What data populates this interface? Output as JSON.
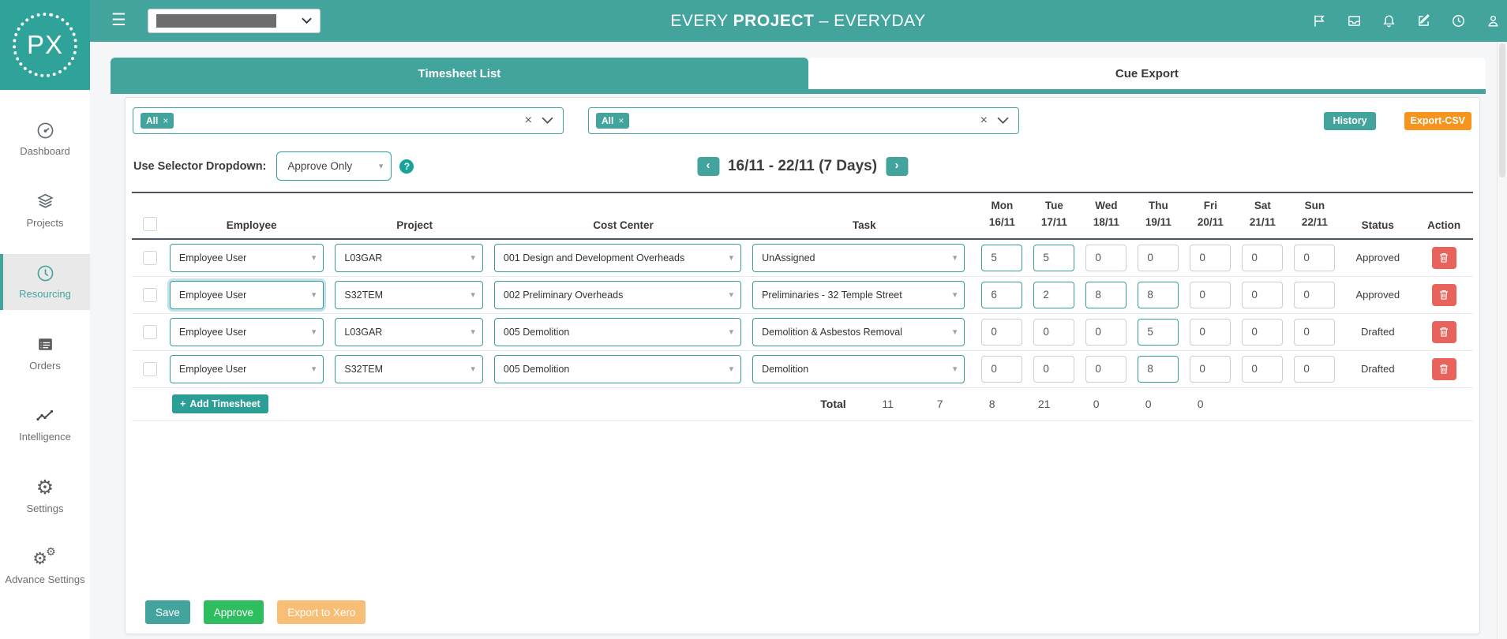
{
  "app": {
    "logo_text": "PX",
    "title": {
      "light1": "EVERY ",
      "bold": "PROJECT",
      "light2": " – EVERYDAY"
    },
    "topbar_icons": [
      "flag-icon",
      "inbox-icon",
      "bell-icon",
      "compose-icon",
      "clock-icon",
      "user-icon"
    ]
  },
  "icons": {
    "hamburger": "☰",
    "caret": "▾",
    "chip_close": "×",
    "clear": "×",
    "help": "?",
    "prev": "‹",
    "next": "›",
    "plus": "+"
  },
  "colors": {
    "accent_teal": "#43a49e",
    "orange": "#f7941d",
    "green": "#2ebe60",
    "red": "#e8635c",
    "xero_orange": "#f9be76"
  },
  "sidebar": {
    "items": [
      {
        "label": "Dashboard",
        "icon": "dashboard-icon",
        "active": false
      },
      {
        "label": "Projects",
        "icon": "projects-icon",
        "active": false
      },
      {
        "label": "Resourcing",
        "icon": "resourcing-icon",
        "active": true
      },
      {
        "label": "Orders",
        "icon": "orders-icon",
        "active": false
      },
      {
        "label": "Intelligence",
        "icon": "intelligence-icon",
        "active": false
      },
      {
        "label": "Settings",
        "icon": "settings-icon",
        "active": false
      },
      {
        "label": "Advance Settings",
        "icon": "advance-settings-icon",
        "active": false
      }
    ]
  },
  "tabs": [
    {
      "label": "Timesheet List",
      "active": true
    },
    {
      "label": "Cue Export",
      "active": false
    }
  ],
  "filters": {
    "chip1": "All",
    "chip2": "All",
    "history": "History",
    "export_csv": "Export-CSV",
    "selector_label": "Use Selector Dropdown:",
    "selector_value": "Approve Only"
  },
  "date_nav": {
    "range": "16/11 - 22/11 (7 Days)"
  },
  "table": {
    "headers": {
      "employee": "Employee",
      "project": "Project",
      "cost_center": "Cost Center",
      "task": "Task",
      "status": "Status",
      "action": "Action"
    },
    "day_headers": [
      {
        "day": "Mon",
        "date": "16/11"
      },
      {
        "day": "Tue",
        "date": "17/11"
      },
      {
        "day": "Wed",
        "date": "18/11"
      },
      {
        "day": "Thu",
        "date": "19/11"
      },
      {
        "day": "Fri",
        "date": "20/11"
      },
      {
        "day": "Sat",
        "date": "21/11"
      },
      {
        "day": "Sun",
        "date": "22/11"
      }
    ],
    "rows": [
      {
        "employee": "Employee User",
        "project": "L03GAR",
        "cost_center": "001 Design and Development Overheads",
        "task": "UnAssigned",
        "days": [
          "5",
          "5",
          "0",
          "0",
          "0",
          "0",
          "0"
        ],
        "status": "Approved"
      },
      {
        "employee": "Employee User",
        "project": "S32TEM",
        "cost_center": "002 Preliminary Overheads",
        "task": "Preliminaries - 32 Temple Street",
        "days": [
          "6",
          "2",
          "8",
          "8",
          "0",
          "0",
          "0"
        ],
        "status": "Approved"
      },
      {
        "employee": "Employee User",
        "project": "L03GAR",
        "cost_center": "005 Demolition",
        "task": "Demolition & Asbestos Removal",
        "days": [
          "0",
          "0",
          "0",
          "5",
          "0",
          "0",
          "0"
        ],
        "status": "Drafted"
      },
      {
        "employee": "Employee User",
        "project": "S32TEM",
        "cost_center": "005 Demolition",
        "task": "Demolition",
        "days": [
          "0",
          "0",
          "0",
          "8",
          "0",
          "0",
          "0"
        ],
        "status": "Drafted"
      }
    ],
    "focus": {
      "row_index": 1,
      "column": "employee"
    },
    "total_label": "Total",
    "totals": [
      "11",
      "7",
      "8",
      "21",
      "0",
      "0",
      "0"
    ]
  },
  "actions": {
    "add_timesheet": "Add Timesheet",
    "save": "Save",
    "approve": "Approve",
    "export_xero": "Export to Xero"
  }
}
